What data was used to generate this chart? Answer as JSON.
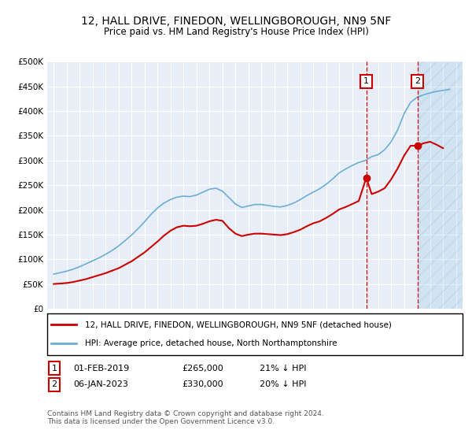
{
  "title": "12, HALL DRIVE, FINEDON, WELLINGBOROUGH, NN9 5NF",
  "subtitle": "Price paid vs. HM Land Registry's House Price Index (HPI)",
  "ylabel_ticks": [
    "£0",
    "£50K",
    "£100K",
    "£150K",
    "£200K",
    "£250K",
    "£300K",
    "£350K",
    "£400K",
    "£450K",
    "£500K"
  ],
  "ytick_values": [
    0,
    50000,
    100000,
    150000,
    200000,
    250000,
    300000,
    350000,
    400000,
    450000,
    500000
  ],
  "xlim_start": 1994.5,
  "xlim_end": 2026.5,
  "ylim": [
    0,
    500000
  ],
  "hpi_color": "#6baed6",
  "price_color": "#cc0000",
  "marker1_date": 2019.083,
  "marker1_price": 265000,
  "marker1_label": "01-FEB-2019",
  "marker1_text": "£265,000",
  "marker1_pct": "21% ↓ HPI",
  "marker2_date": 2023.017,
  "marker2_price": 330000,
  "marker2_label": "06-JAN-2023",
  "marker2_text": "£330,000",
  "marker2_pct": "20% ↓ HPI",
  "legend_line1": "12, HALL DRIVE, FINEDON, WELLINGBOROUGH, NN9 5NF (detached house)",
  "legend_line2": "HPI: Average price, detached house, North Northamptonshire",
  "footnote": "Contains HM Land Registry data © Crown copyright and database right 2024.\nThis data is licensed under the Open Government Licence v3.0.",
  "plot_bg": "#e8eef7",
  "hatch_color": "#aac4e0"
}
